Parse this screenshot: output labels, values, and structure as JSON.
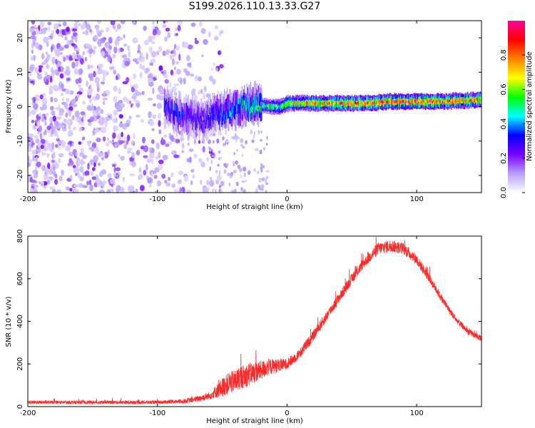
{
  "title": "S199.2026.110.13.33.G27",
  "chart_data": [
    {
      "type": "heatmap",
      "xlabel": "Height of straight line (km)",
      "ylabel": "Frequency (Hz)",
      "xlim": [
        -200,
        150
      ],
      "ylim": [
        -25,
        25
      ],
      "xticks": [
        -200,
        -100,
        0,
        100
      ],
      "yticks": [
        -20,
        -10,
        0,
        10,
        20
      ],
      "xtick_labels": [
        "-200",
        "-100",
        "0",
        "100"
      ],
      "ytick_labels": [
        "-20",
        "-10",
        "0",
        "10",
        "20"
      ],
      "colorbar": {
        "label": "Normalized spectral amplitude",
        "range": [
          0,
          1
        ],
        "ticks": [
          0.0,
          0.2,
          0.4,
          0.6,
          0.8
        ],
        "tick_labels": [
          "0.0",
          "0.2",
          "0.4",
          "0.6",
          "0.8"
        ],
        "colors": [
          "#ffffff",
          "#b8a0ff",
          "#7a00ff",
          "#0000ff",
          "#00ffff",
          "#00ff00",
          "#ffff00",
          "#ff8000",
          "#ff0000",
          "#ff00a0"
        ]
      },
      "ridge": {
        "x": [
          -95,
          -85,
          -75,
          -65,
          -55,
          -45,
          -35,
          -25,
          -15,
          -5,
          0,
          10,
          20,
          40,
          60,
          80,
          100,
          120,
          150
        ],
        "freq_hz": [
          0,
          -2,
          -3,
          -4,
          -2,
          -1,
          0,
          1,
          0,
          0,
          1,
          1,
          1,
          1,
          1,
          1.5,
          1.5,
          1.5,
          2
        ],
        "amplitude": [
          0.3,
          0.35,
          0.3,
          0.3,
          0.35,
          0.4,
          0.45,
          0.5,
          0.55,
          0.6,
          0.65,
          0.7,
          0.75,
          0.8,
          0.85,
          0.9,
          0.9,
          0.85,
          0.8
        ]
      },
      "noise_region_x": [
        -200,
        -60
      ]
    },
    {
      "type": "line",
      "xlabel": "Height of straight line (km)",
      "ylabel": "SNR (10 * v/v)",
      "xlim": [
        -200,
        150
      ],
      "ylim": [
        0,
        800
      ],
      "xticks": [
        -200,
        -100,
        0,
        100
      ],
      "yticks": [
        0,
        200,
        400,
        600,
        800
      ],
      "xtick_labels": [
        "-200",
        "-100",
        "0",
        "100"
      ],
      "ytick_labels": [
        "0",
        "200",
        "400",
        "600",
        "800"
      ],
      "color": "#ff2a2a",
      "series": [
        {
          "name": "SNR",
          "x": [
            -200,
            -150,
            -100,
            -80,
            -70,
            -60,
            -55,
            -50,
            -45,
            -40,
            -35,
            -30,
            -25,
            -20,
            -15,
            -10,
            -5,
            0,
            10,
            20,
            30,
            40,
            50,
            60,
            70,
            80,
            90,
            100,
            110,
            120,
            130,
            140,
            150
          ],
          "values": [
            20,
            20,
            20,
            25,
            35,
            50,
            70,
            90,
            110,
            120,
            140,
            150,
            160,
            170,
            185,
            190,
            195,
            200,
            250,
            330,
            420,
            510,
            600,
            680,
            740,
            755,
            740,
            690,
            600,
            500,
            410,
            350,
            320
          ],
          "noise": [
            8,
            8,
            8,
            10,
            14,
            18,
            30,
            45,
            50,
            55,
            55,
            55,
            50,
            45,
            40,
            35,
            30,
            25,
            25,
            25,
            25,
            25,
            25,
            25,
            30,
            30,
            28,
            25,
            20,
            18,
            15,
            15,
            15
          ]
        }
      ]
    }
  ]
}
